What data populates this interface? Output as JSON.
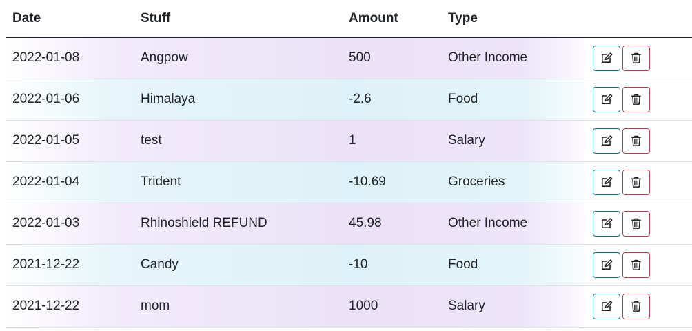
{
  "table": {
    "headers": {
      "date": "Date",
      "stuff": "Stuff",
      "amount": "Amount",
      "type": "Type"
    },
    "rows": [
      {
        "date": "2022-01-08",
        "stuff": "Angpow",
        "amount": "500",
        "type": "Other Income"
      },
      {
        "date": "2022-01-06",
        "stuff": "Himalaya",
        "amount": "-2.6",
        "type": "Food"
      },
      {
        "date": "2022-01-05",
        "stuff": "test",
        "amount": "1",
        "type": "Salary"
      },
      {
        "date": "2022-01-04",
        "stuff": "Trident",
        "amount": "-10.69",
        "type": "Groceries"
      },
      {
        "date": "2022-01-03",
        "stuff": "Rhinoshield REFUND",
        "amount": "45.98",
        "type": "Other Income"
      },
      {
        "date": "2021-12-22",
        "stuff": "Candy",
        "amount": "-10",
        "type": "Food"
      },
      {
        "date": "2021-12-22",
        "stuff": "mom",
        "amount": "1000",
        "type": "Salary"
      }
    ]
  },
  "icons": {
    "edit": "edit-icon",
    "delete": "trash-icon"
  },
  "colors": {
    "edit_border": "#0d6e8c",
    "delete_border": "#c0394b",
    "odd_row_tint": "#ebe2f8",
    "even_row_tint": "#ddf2f8",
    "header_rule": "#212529"
  }
}
